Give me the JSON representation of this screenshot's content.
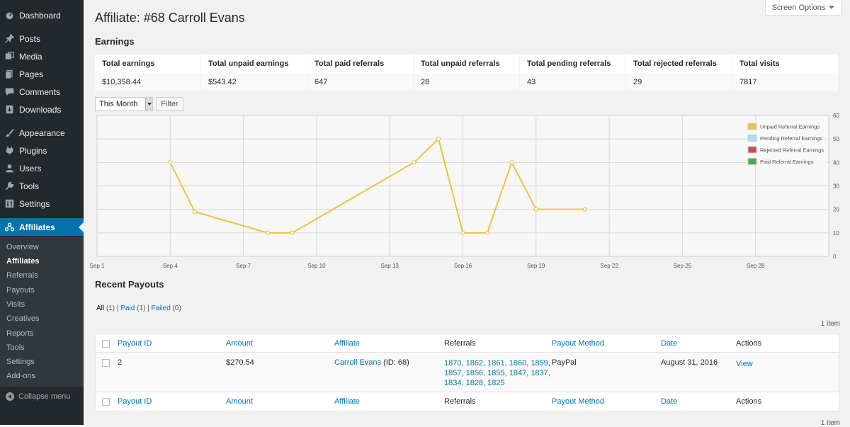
{
  "sidebar": {
    "items": [
      {
        "label": "Dashboard",
        "icon": "dashboard-icon"
      },
      {
        "label": "Posts",
        "icon": "pin-icon"
      },
      {
        "label": "Media",
        "icon": "media-icon"
      },
      {
        "label": "Pages",
        "icon": "pages-icon"
      },
      {
        "label": "Comments",
        "icon": "comment-icon"
      },
      {
        "label": "Downloads",
        "icon": "download-icon"
      },
      {
        "label": "Appearance",
        "icon": "brush-icon"
      },
      {
        "label": "Plugins",
        "icon": "plugin-icon"
      },
      {
        "label": "Users",
        "icon": "user-icon"
      },
      {
        "label": "Tools",
        "icon": "wrench-icon"
      },
      {
        "label": "Settings",
        "icon": "settings-icon"
      },
      {
        "label": "Affiliates",
        "icon": "affiliates-icon"
      }
    ],
    "submenu": [
      "Overview",
      "Affiliates",
      "Referrals",
      "Payouts",
      "Visits",
      "Creatives",
      "Reports",
      "Tools",
      "Settings",
      "Add-ons"
    ],
    "collapse_label": "Collapse menu"
  },
  "header": {
    "title": "Affiliate: #68 Carroll Evans",
    "screen_options": "Screen Options"
  },
  "earnings": {
    "title": "Earnings",
    "headers": [
      "Total earnings",
      "Total unpaid earnings",
      "Total paid referrals",
      "Total unpaid referrals",
      "Total pending referrals",
      "Total rejected referrals",
      "Total visits"
    ],
    "values": [
      "$10,358.44",
      "$543.42",
      "647",
      "28",
      "43",
      "29",
      "7817"
    ]
  },
  "filter": {
    "range": "This Month",
    "button": "Filter"
  },
  "chart_data": {
    "type": "line",
    "x_ticks": [
      "Sep 1",
      "Sep 4",
      "Sep 7",
      "Sep 10",
      "Sep 13",
      "Sep 16",
      "Sep 19",
      "Sep 22",
      "Sep 25",
      "Sep 28"
    ],
    "y_ticks": [
      "0",
      "10",
      "20",
      "30",
      "40",
      "50",
      "60"
    ],
    "ylim": [
      0,
      60
    ],
    "xlim": [
      1,
      31
    ],
    "grid": true,
    "legend_position": "top-right",
    "legend": [
      {
        "name": "Unpaid Referral Earnings",
        "color": "#edc240"
      },
      {
        "name": "Pending Referral Earnings",
        "color": "#afd8f8"
      },
      {
        "name": "Rejected Referral Earnings",
        "color": "#cb4b4b"
      },
      {
        "name": "Paid Referral Earnings",
        "color": "#4da74d"
      }
    ],
    "series": [
      {
        "name": "Unpaid Referral Earnings",
        "color": "#edc240",
        "x": [
          4,
          5,
          8,
          9,
          14,
          15,
          16,
          17,
          18,
          19,
          21
        ],
        "y": [
          40,
          19,
          10,
          10,
          40,
          50,
          10,
          10,
          40,
          20,
          20
        ]
      }
    ]
  },
  "payouts": {
    "title": "Recent Payouts",
    "filters": {
      "all": "All",
      "all_count": "(1)",
      "sep": "|",
      "paid": "Paid",
      "paid_count": "(1)",
      "failed": "Failed",
      "failed_count": "(0)"
    },
    "count": "1 item",
    "columns": [
      "Payout ID",
      "Amount",
      "Affiliate",
      "Referrals",
      "Payout Method",
      "Date",
      "Actions"
    ],
    "rows": [
      {
        "id": "2",
        "amount": "$270.54",
        "affiliate_name": "Carroll Evans",
        "affiliate_id": "(ID: 68)",
        "referrals_lines": [
          "1870, 1862, 1861, 1860, 1859,",
          "1857, 1856, 1855, 1847, 1837,",
          "1834, 1828, 1825"
        ],
        "method": "PayPal",
        "date": "August 31, 2016",
        "action": "View"
      }
    ]
  }
}
